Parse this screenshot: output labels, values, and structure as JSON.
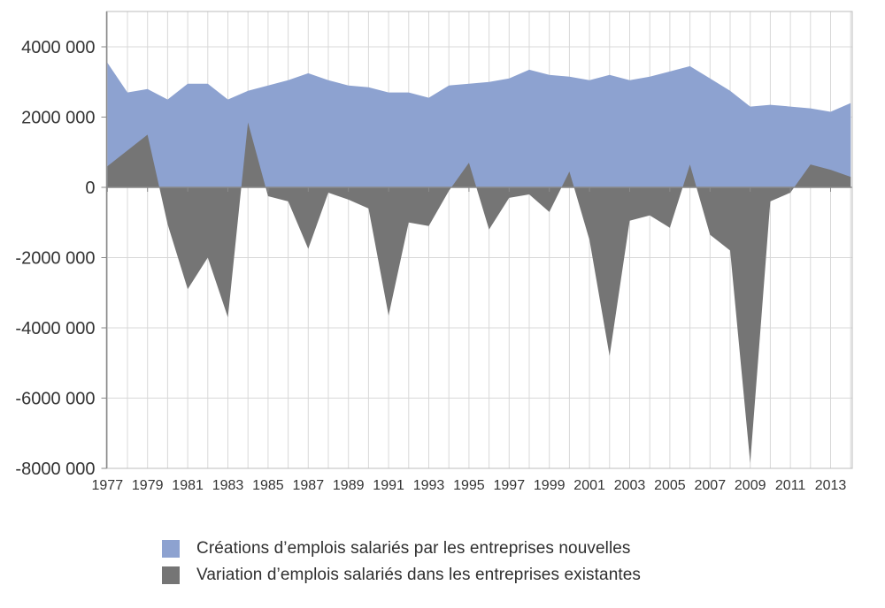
{
  "chart_data": {
    "type": "area",
    "title": "",
    "xlabel": "",
    "ylabel": "",
    "x": [
      1977,
      1978,
      1979,
      1980,
      1981,
      1982,
      1983,
      1984,
      1985,
      1986,
      1987,
      1988,
      1989,
      1990,
      1991,
      1992,
      1993,
      1994,
      1995,
      1996,
      1997,
      1998,
      1999,
      2000,
      2001,
      2002,
      2003,
      2004,
      2005,
      2006,
      2007,
      2008,
      2009,
      2010,
      2011,
      2012,
      2013,
      2014
    ],
    "series": [
      {
        "name": "Créations d’emplois salariés par les entreprises nouvelles",
        "color": "#8DA2D0",
        "values": [
          3550000,
          2700000,
          2800000,
          2500000,
          2950000,
          2950000,
          2500000,
          2750000,
          2900000,
          3050000,
          3250000,
          3050000,
          2900000,
          2850000,
          2700000,
          2700000,
          2550000,
          2900000,
          2950000,
          3000000,
          3100000,
          3350000,
          3200000,
          3150000,
          3050000,
          3200000,
          3050000,
          3150000,
          3300000,
          3450000,
          3100000,
          2750000,
          2300000,
          2350000,
          2300000,
          2250000,
          2150000,
          2400000
        ]
      },
      {
        "name": "Variation d’emplois salariés dans les entreprises existantes",
        "color": "#757575",
        "values": [
          600000,
          1050000,
          1500000,
          -1050000,
          -2900000,
          -2000000,
          -3700000,
          1850000,
          -250000,
          -400000,
          -1750000,
          -150000,
          -350000,
          -600000,
          -3650000,
          -1000000,
          -1100000,
          -100000,
          700000,
          -1200000,
          -300000,
          -200000,
          -700000,
          450000,
          -1500000,
          -4800000,
          -950000,
          -800000,
          -1150000,
          650000,
          -1350000,
          -1800000,
          -7850000,
          -400000,
          -150000,
          650000,
          500000,
          300000
        ]
      }
    ],
    "baseline": 0,
    "ylim": [
      -8000000,
      5000000
    ],
    "yticks": {
      "values": [
        4000000,
        2000000,
        0,
        -2000000,
        -4000000,
        -6000000,
        -8000000
      ],
      "labels": [
        "4000 000",
        "2000 000",
        "0",
        "-2000 000",
        "-4000 000",
        "-6000 000",
        "-8000 000"
      ]
    },
    "xticks": {
      "values": [
        1977,
        1979,
        1981,
        1983,
        1985,
        1987,
        1989,
        1991,
        1993,
        1995,
        1997,
        1999,
        2001,
        2003,
        2005,
        2007,
        2009,
        2011,
        2013
      ],
      "labels": [
        "1977",
        "1979",
        "1981",
        "1983",
        "1985",
        "1987",
        "1989",
        "1991",
        "1993",
        "1995",
        "1997",
        "1999",
        "2001",
        "2003",
        "2005",
        "2007",
        "2009",
        "2011",
        "2013"
      ]
    },
    "grid": true,
    "legend_position": "bottom-left"
  },
  "style_colors": {
    "gridline": "#d8d8d8",
    "zero_axis": "#8a8a8a",
    "plot_border": "#bdbdbd",
    "left_axis": "#8a8a8a",
    "tick_label": "#333333",
    "legend_text": "#2f2f2f"
  }
}
